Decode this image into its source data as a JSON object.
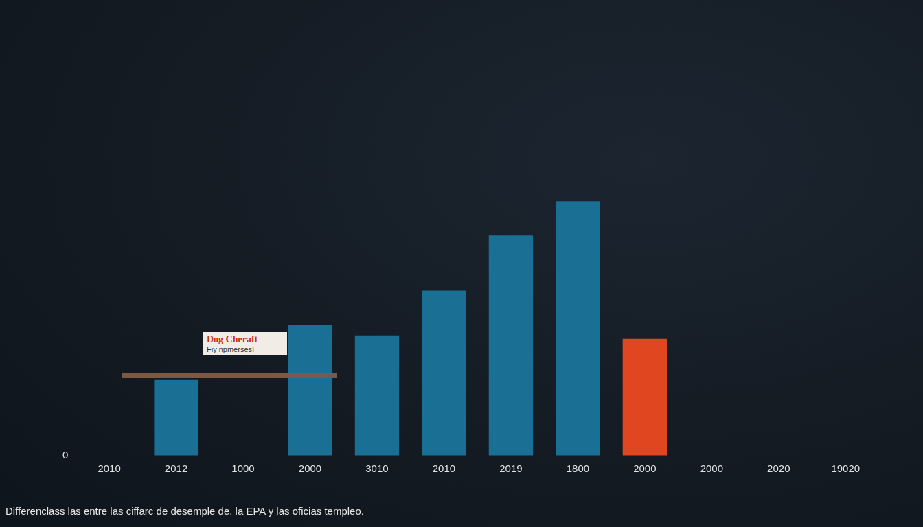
{
  "chart_data": {
    "type": "bar",
    "title": "Differenclass las entre las ciffarc de desemple de. la EPA y las oficias templeo.",
    "annotations": [
      "Dog Cheraft",
      "Fiy npmersesI"
    ],
    "categories": [
      "2010",
      "2012",
      "1000",
      "2000",
      "3010",
      "2010",
      "2019",
      "1800",
      "2000",
      "2000",
      "2020",
      "19020"
    ],
    "values": [
      null,
      2.2,
      null,
      3.8,
      3.5,
      4.8,
      6.4,
      7.4,
      3.4,
      null,
      null,
      null
    ],
    "colors": [
      "#1a6f94",
      "#1a6f94",
      "#1a6f94",
      "#1a6f94",
      "#1a6f94",
      "#1a6f94",
      "#1a6f94",
      "#1a6f94",
      "#e0461f",
      "#1a6f94",
      "#1a6f94",
      "#1a6f94"
    ],
    "ylim": [
      0,
      10
    ],
    "yticks": [
      0
    ],
    "grid": true,
    "data_labels": false
  }
}
